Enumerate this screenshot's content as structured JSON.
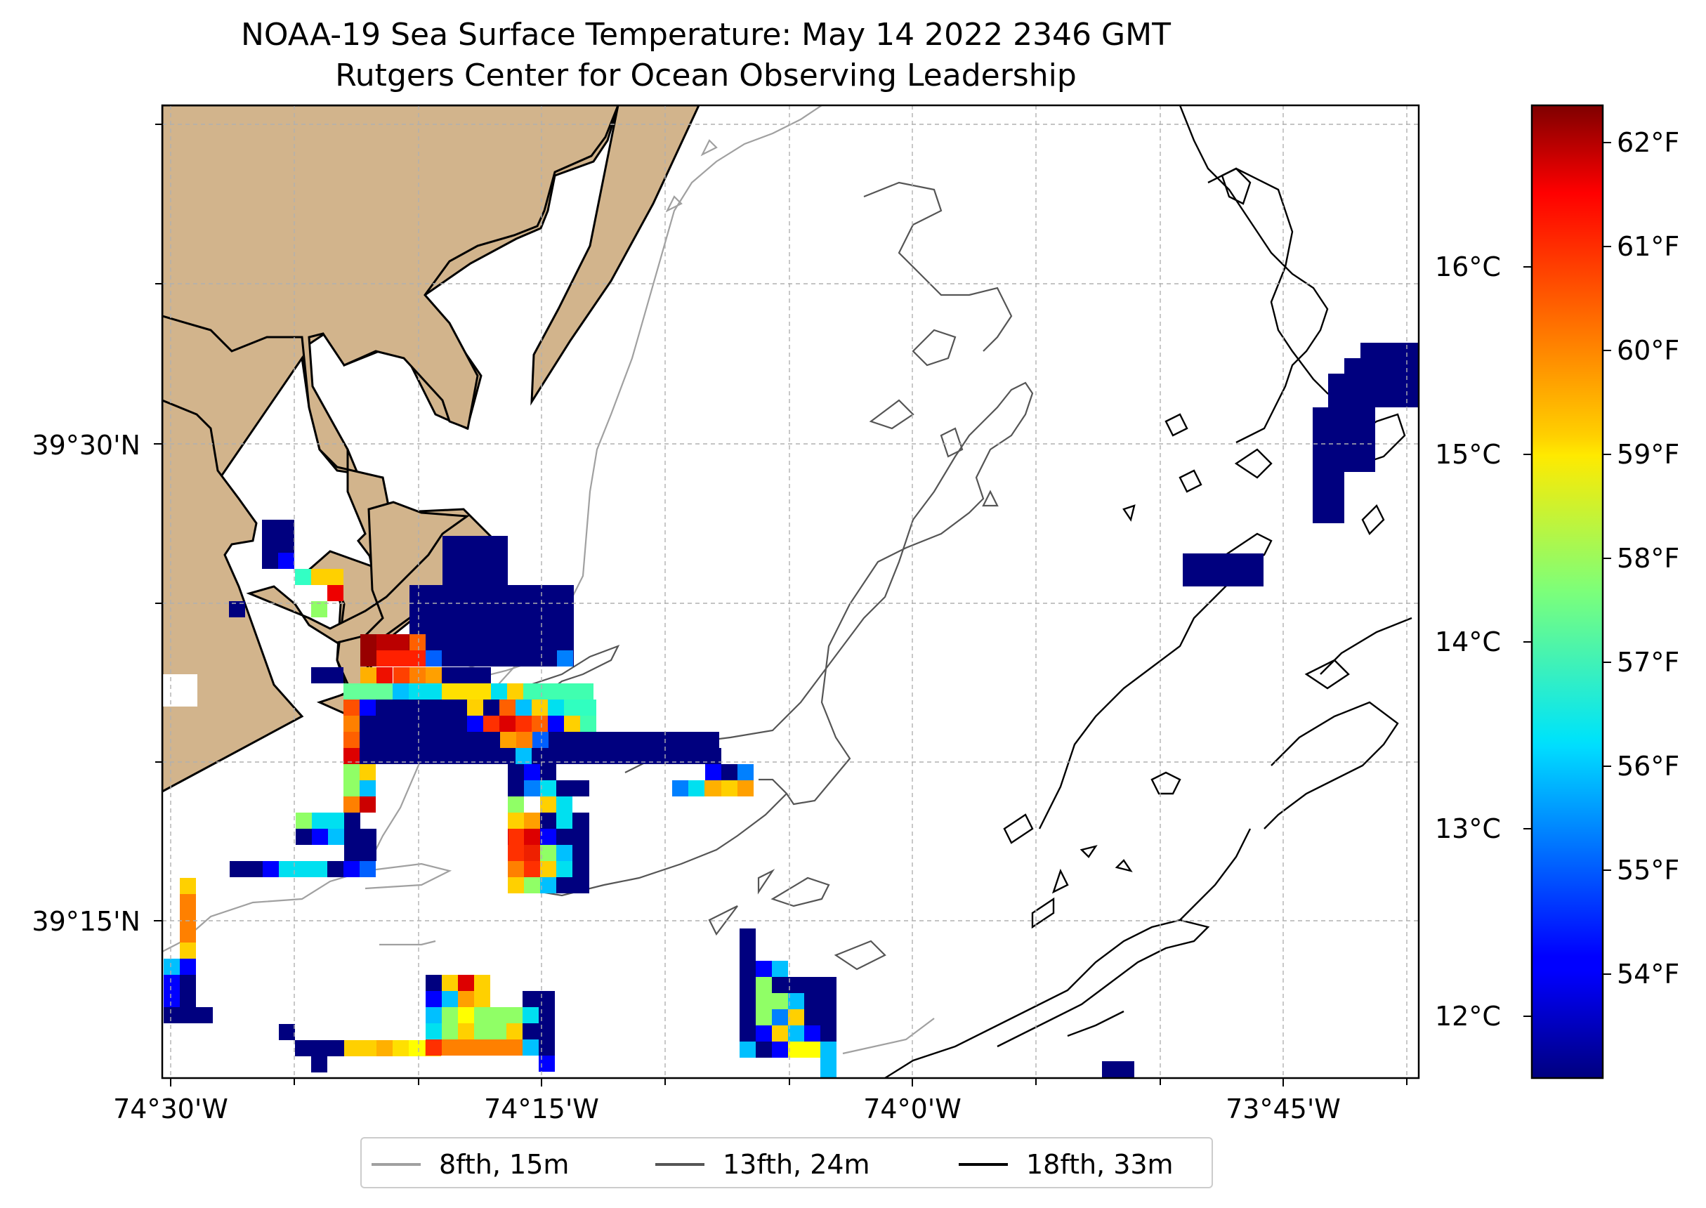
{
  "title": {
    "line1": "NOAA-19 Sea Surface Temperature: May 14 2022 2346 GMT",
    "line2": "Rutgers Center for Ocean Observing Leadership"
  },
  "axes": {
    "lat_ticks": [
      {
        "value": 39.5,
        "label": "39°30'N"
      },
      {
        "value": 39.25,
        "label": "39°15'N"
      }
    ],
    "lon_ticks": [
      {
        "value": -74.5,
        "label": "74°30'W"
      },
      {
        "value": -74.25,
        "label": "74°15'W"
      },
      {
        "value": -74.0,
        "label": "74°0'W"
      },
      {
        "value": -73.75,
        "label": "73°45'W"
      }
    ]
  },
  "colorbar": {
    "celsius_ticks": [
      "12°C",
      "13°C",
      "14°C",
      "15°C",
      "16°C"
    ],
    "fahrenheit_ticks": [
      "54°F",
      "55°F",
      "56°F",
      "57°F",
      "58°F",
      "59°F",
      "60°F",
      "61°F",
      "62°F"
    ],
    "min_f": 53.1,
    "max_f": 62.3
  },
  "legend": {
    "items": [
      {
        "label": "8fth, 15m",
        "color": "#a0a0a0"
      },
      {
        "label": "13fth, 24m",
        "color": "#555555"
      },
      {
        "label": "18fth, 33m",
        "color": "#000000"
      }
    ]
  },
  "colors": {
    "land": "#d2b48c",
    "ocean": "#ffffff",
    "grid": "#b0b0b0"
  }
}
